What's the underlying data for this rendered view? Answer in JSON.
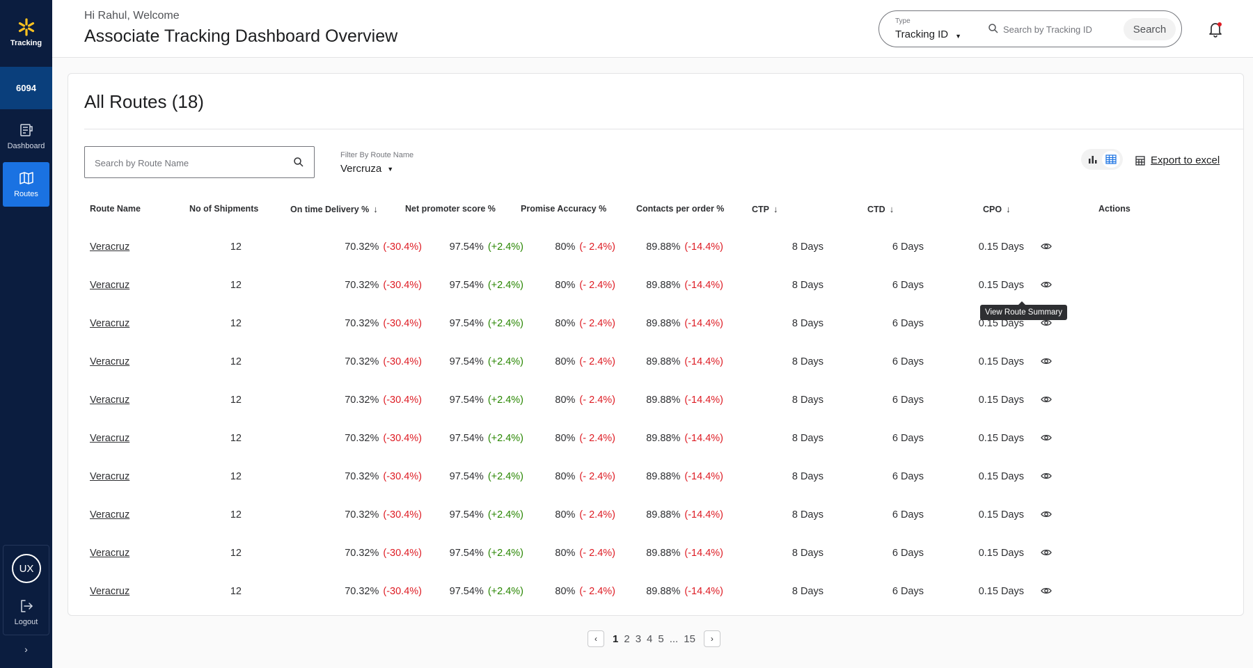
{
  "sidebar": {
    "brand_label": "Tracking",
    "store_number": "6094",
    "items": [
      {
        "label": "Dashboard",
        "icon": "dashboard-icon"
      },
      {
        "label": "Routes",
        "icon": "map-icon"
      }
    ],
    "avatar_initials": "UX",
    "logout_label": "Logout",
    "expand_icon": "chevron-right-icon"
  },
  "header": {
    "greeting": "Hi Rahul, Welcome",
    "title": "Associate Tracking Dashboard Overview",
    "type_label": "Type",
    "type_value": "Tracking ID",
    "search_placeholder": "Search by Tracking ID",
    "search_button": "Search",
    "notification_dot_color": "#de1c24"
  },
  "routes": {
    "title": "All Routes (18)",
    "search_placeholder": "Search by Route Name",
    "filter_label": "Filter By Route Name",
    "filter_value": "Vercruza",
    "export_label": "Export to excel",
    "columns": [
      {
        "label": "Route Name",
        "sort": ""
      },
      {
        "label": "No of Shipments",
        "sort": ""
      },
      {
        "label": "On time Delivery %",
        "sort": "↓"
      },
      {
        "label": "Net promoter score %",
        "sort": ""
      },
      {
        "label": "Promise Accuracy %",
        "sort": ""
      },
      {
        "label": "Contacts per order %",
        "sort": ""
      },
      {
        "label": "CTP",
        "sort": "↓"
      },
      {
        "label": "CTD",
        "sort": "↓"
      },
      {
        "label": "CPO",
        "sort": "↓"
      },
      {
        "label": "Actions",
        "sort": ""
      }
    ],
    "rows": [
      {
        "route": "Veracruz",
        "shipments": "12",
        "otd": "70.32%",
        "otd_delta": "(-30.4%)",
        "nps": "97.54%",
        "nps_delta": "(+2.4%)",
        "pa": "80%",
        "pa_delta": "(- 2.4%)",
        "cpo_pct": "89.88%",
        "cpo_delta": "(-14.4%)",
        "ctp": "8 Days",
        "ctd": "6 Days",
        "cpo": "0.15 Days"
      },
      {
        "route": "Veracruz",
        "shipments": "12",
        "otd": "70.32%",
        "otd_delta": "(-30.4%)",
        "nps": "97.54%",
        "nps_delta": "(+2.4%)",
        "pa": "80%",
        "pa_delta": "(- 2.4%)",
        "cpo_pct": "89.88%",
        "cpo_delta": "(-14.4%)",
        "ctp": "8 Days",
        "ctd": "6 Days",
        "cpo": "0.15 Days"
      },
      {
        "route": "Veracruz",
        "shipments": "12",
        "otd": "70.32%",
        "otd_delta": "(-30.4%)",
        "nps": "97.54%",
        "nps_delta": "(+2.4%)",
        "pa": "80%",
        "pa_delta": "(- 2.4%)",
        "cpo_pct": "89.88%",
        "cpo_delta": "(-14.4%)",
        "ctp": "8 Days",
        "ctd": "6 Days",
        "cpo": "0.15 Days"
      },
      {
        "route": "Veracruz",
        "shipments": "12",
        "otd": "70.32%",
        "otd_delta": "(-30.4%)",
        "nps": "97.54%",
        "nps_delta": "(+2.4%)",
        "pa": "80%",
        "pa_delta": "(- 2.4%)",
        "cpo_pct": "89.88%",
        "cpo_delta": "(-14.4%)",
        "ctp": "8 Days",
        "ctd": "6 Days",
        "cpo": "0.15 Days"
      },
      {
        "route": "Veracruz",
        "shipments": "12",
        "otd": "70.32%",
        "otd_delta": "(-30.4%)",
        "nps": "97.54%",
        "nps_delta": "(+2.4%)",
        "pa": "80%",
        "pa_delta": "(- 2.4%)",
        "cpo_pct": "89.88%",
        "cpo_delta": "(-14.4%)",
        "ctp": "8 Days",
        "ctd": "6 Days",
        "cpo": "0.15 Days"
      },
      {
        "route": "Veracruz",
        "shipments": "12",
        "otd": "70.32%",
        "otd_delta": "(-30.4%)",
        "nps": "97.54%",
        "nps_delta": "(+2.4%)",
        "pa": "80%",
        "pa_delta": "(- 2.4%)",
        "cpo_pct": "89.88%",
        "cpo_delta": "(-14.4%)",
        "ctp": "8 Days",
        "ctd": "6 Days",
        "cpo": "0.15 Days"
      },
      {
        "route": "Veracruz",
        "shipments": "12",
        "otd": "70.32%",
        "otd_delta": "(-30.4%)",
        "nps": "97.54%",
        "nps_delta": "(+2.4%)",
        "pa": "80%",
        "pa_delta": "(- 2.4%)",
        "cpo_pct": "89.88%",
        "cpo_delta": "(-14.4%)",
        "ctp": "8 Days",
        "ctd": "6 Days",
        "cpo": "0.15 Days"
      },
      {
        "route": "Veracruz",
        "shipments": "12",
        "otd": "70.32%",
        "otd_delta": "(-30.4%)",
        "nps": "97.54%",
        "nps_delta": "(+2.4%)",
        "pa": "80%",
        "pa_delta": "(- 2.4%)",
        "cpo_pct": "89.88%",
        "cpo_delta": "(-14.4%)",
        "ctp": "8 Days",
        "ctd": "6 Days",
        "cpo": "0.15 Days"
      },
      {
        "route": "Veracruz",
        "shipments": "12",
        "otd": "70.32%",
        "otd_delta": "(-30.4%)",
        "nps": "97.54%",
        "nps_delta": "(+2.4%)",
        "pa": "80%",
        "pa_delta": "(- 2.4%)",
        "cpo_pct": "89.88%",
        "cpo_delta": "(-14.4%)",
        "ctp": "8 Days",
        "ctd": "6 Days",
        "cpo": "0.15 Days"
      },
      {
        "route": "Veracruz",
        "shipments": "12",
        "otd": "70.32%",
        "otd_delta": "(-30.4%)",
        "nps": "97.54%",
        "nps_delta": "(+2.4%)",
        "pa": "80%",
        "pa_delta": "(- 2.4%)",
        "cpo_pct": "89.88%",
        "cpo_delta": "(-14.4%)",
        "ctp": "8 Days",
        "ctd": "6 Days",
        "cpo": "0.15 Days"
      }
    ],
    "tooltip": "View Route Summary"
  },
  "pagination": {
    "pages": [
      "1",
      "2",
      "3",
      "4",
      "5"
    ],
    "ellipsis": "...",
    "last_page": "15",
    "current": "1"
  },
  "colors": {
    "sidebar_bg": "#0b1d3f",
    "sidebar_active": "#1a72e2",
    "negative": "#de1c24",
    "positive": "#2a8703",
    "brand_spark": "#ffc220"
  }
}
